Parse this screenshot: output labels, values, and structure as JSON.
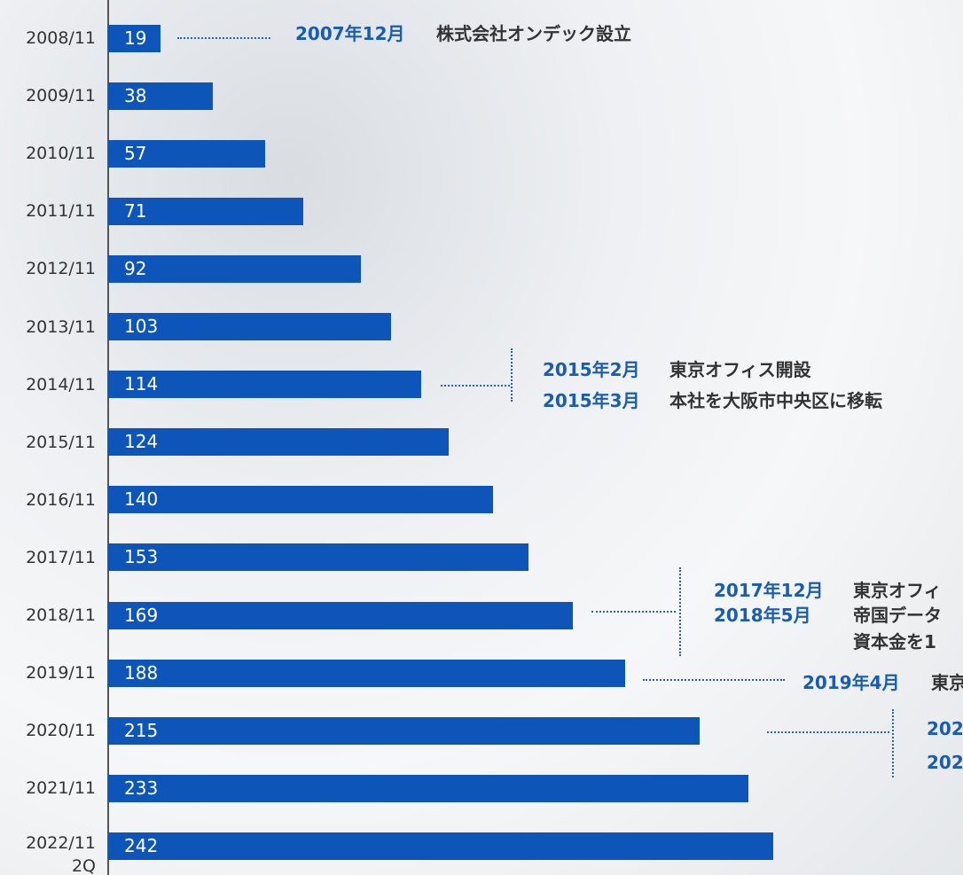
{
  "chart_data": {
    "type": "bar",
    "orientation": "horizontal",
    "color": "#0d55b8",
    "categories": [
      "2008/11",
      "2009/11",
      "2010/11",
      "2011/11",
      "2012/11",
      "2013/11",
      "2014/11",
      "2015/11",
      "2016/11",
      "2017/11",
      "2018/11",
      "2019/11",
      "2020/11",
      "2021/11",
      "2022/11\n2Q"
    ],
    "values": [
      19,
      38,
      57,
      71,
      92,
      103,
      114,
      124,
      140,
      153,
      169,
      188,
      215,
      233,
      242
    ],
    "annotations": [
      {
        "date": "2007年12月",
        "text": "株式会社オンデック設立"
      },
      {
        "date": "2015年2月",
        "text": "東京オフィス開設"
      },
      {
        "date": "2015年3月",
        "text": "本社を大阪市中央区に移転"
      },
      {
        "date": "2017年12月",
        "text": "東京オフィ"
      },
      {
        "date": "2018年5月",
        "text": "帝国データ"
      },
      {
        "text": "資本金を1"
      },
      {
        "date": "2019年4月",
        "text": "東京"
      },
      {
        "date": "202"
      },
      {
        "date": "202"
      }
    ]
  }
}
